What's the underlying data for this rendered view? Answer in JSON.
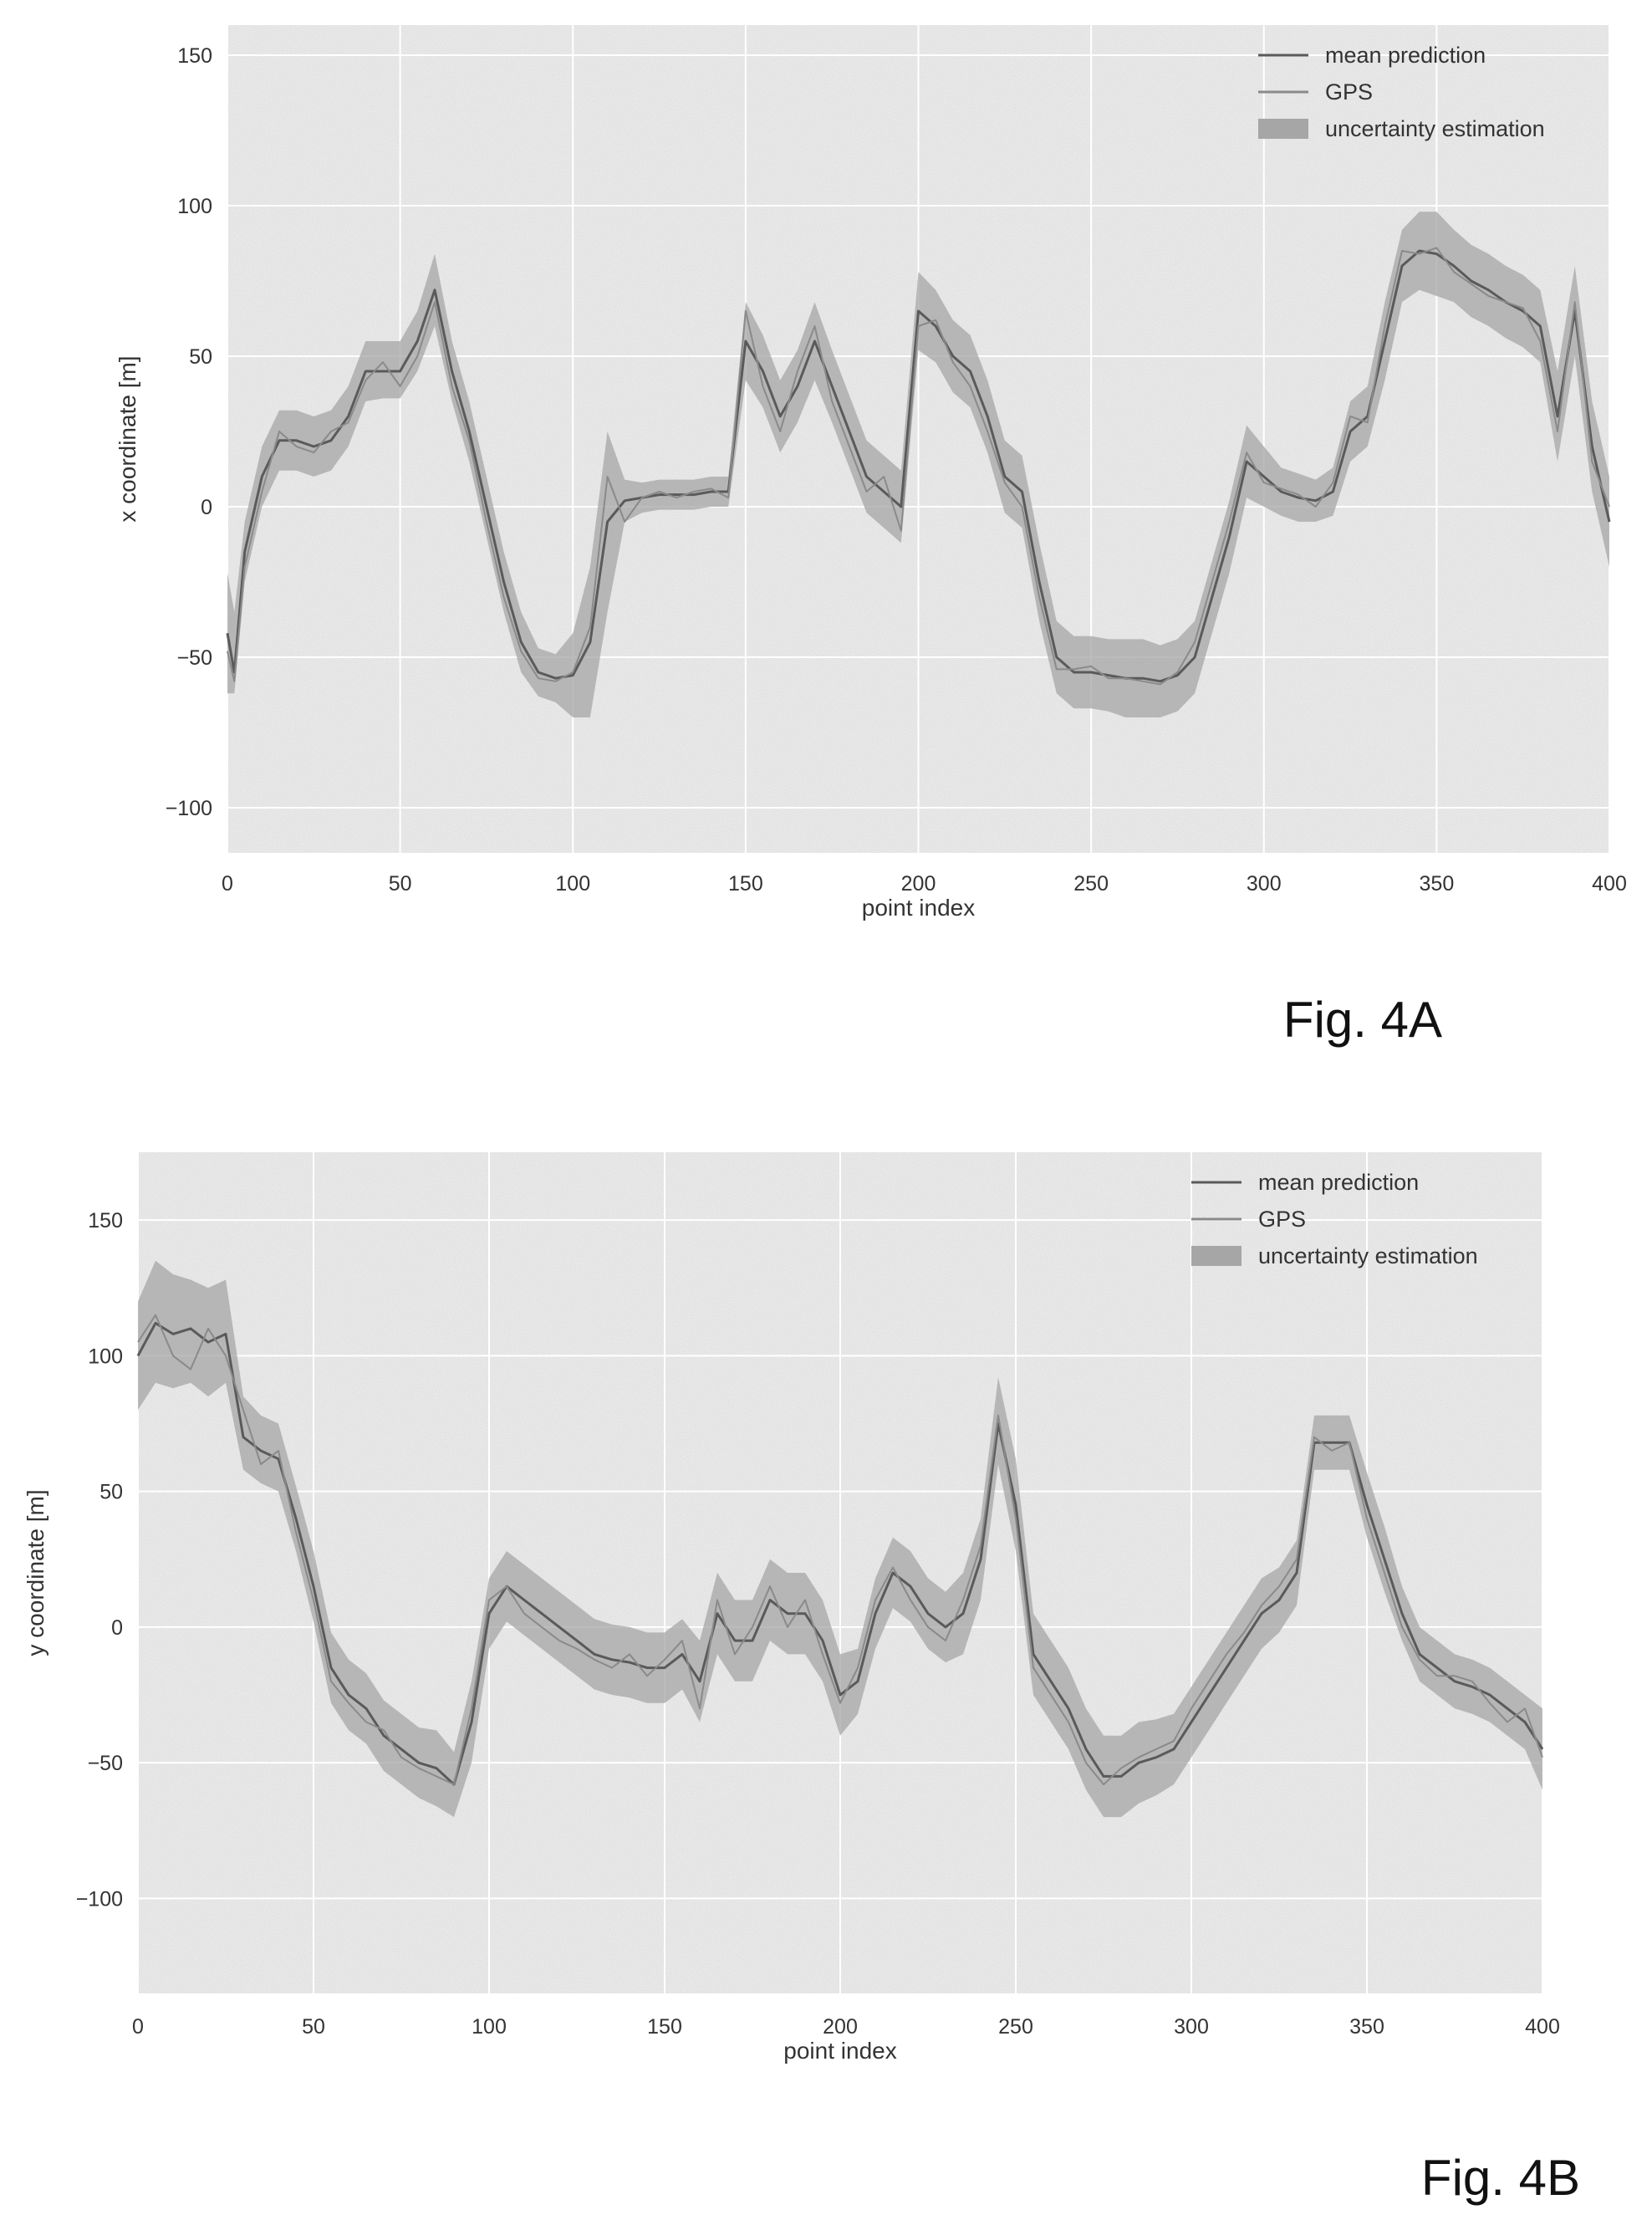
{
  "figures": [
    {
      "caption": "Fig. 4A"
    },
    {
      "caption": "Fig. 4B"
    }
  ],
  "colors": {
    "background": "#e9e9e9",
    "grid": "#ffffff",
    "mean_prediction": "#5a5a5a",
    "gps": "#8a8a8a",
    "uncertainty": "#a6a6a6"
  },
  "chart_data": [
    {
      "type": "line",
      "title": "",
      "xlabel": "point index",
      "ylabel": "x coordinate [m]",
      "xlim": [
        0,
        400
      ],
      "ylim": [
        -115,
        160
      ],
      "xticks": [
        0,
        50,
        100,
        150,
        200,
        250,
        300,
        350,
        400
      ],
      "yticks": [
        150,
        100,
        50,
        0,
        -50,
        -100
      ],
      "grid": true,
      "legend_position": "top-right",
      "legend": [
        "mean prediction",
        "GPS",
        "uncertainty estimation"
      ],
      "x": [
        0,
        2,
        5,
        10,
        15,
        20,
        25,
        30,
        35,
        40,
        45,
        50,
        55,
        60,
        65,
        70,
        75,
        80,
        85,
        90,
        95,
        100,
        105,
        110,
        115,
        120,
        125,
        130,
        135,
        140,
        145,
        150,
        155,
        160,
        165,
        170,
        175,
        180,
        185,
        190,
        195,
        200,
        205,
        210,
        215,
        220,
        225,
        230,
        235,
        240,
        245,
        250,
        255,
        260,
        265,
        270,
        275,
        280,
        285,
        290,
        295,
        300,
        305,
        310,
        315,
        320,
        325,
        330,
        335,
        340,
        345,
        350,
        355,
        360,
        365,
        370,
        375,
        380,
        385,
        390,
        395,
        400
      ],
      "series": [
        {
          "name": "mean prediction",
          "values": [
            -42,
            -55,
            -15,
            10,
            22,
            22,
            20,
            22,
            30,
            45,
            45,
            45,
            55,
            72,
            45,
            25,
            0,
            -25,
            -45,
            -55,
            -57,
            -56,
            -45,
            -5,
            2,
            3,
            4,
            4,
            4,
            5,
            5,
            55,
            45,
            30,
            40,
            55,
            40,
            25,
            10,
            5,
            0,
            65,
            60,
            50,
            45,
            30,
            10,
            5,
            -25,
            -50,
            -55,
            -55,
            -56,
            -57,
            -57,
            -58,
            -56,
            -50,
            -30,
            -10,
            15,
            10,
            5,
            3,
            2,
            5,
            25,
            30,
            55,
            80,
            85,
            84,
            80,
            75,
            72,
            68,
            65,
            60,
            30,
            65,
            20,
            -5
          ],
          "low": [
            -62,
            -62,
            -25,
            0,
            12,
            12,
            10,
            12,
            20,
            35,
            36,
            36,
            45,
            60,
            35,
            15,
            -10,
            -35,
            -55,
            -63,
            -65,
            -70,
            -70,
            -35,
            -5,
            -2,
            -1,
            -1,
            -1,
            0,
            0,
            42,
            33,
            18,
            28,
            42,
            28,
            13,
            -2,
            -7,
            -12,
            52,
            48,
            38,
            33,
            18,
            -2,
            -7,
            -38,
            -62,
            -67,
            -67,
            -68,
            -70,
            -70,
            -70,
            -68,
            -62,
            -42,
            -22,
            3,
            0,
            -3,
            -5,
            -5,
            -3,
            15,
            20,
            42,
            68,
            72,
            70,
            68,
            63,
            60,
            56,
            53,
            48,
            15,
            50,
            5,
            -20
          ],
          "high": [
            -22,
            -35,
            -5,
            20,
            32,
            32,
            30,
            32,
            40,
            55,
            55,
            55,
            65,
            84,
            55,
            35,
            10,
            -15,
            -35,
            -47,
            -49,
            -42,
            -20,
            25,
            9,
            8,
            9,
            9,
            9,
            10,
            10,
            68,
            57,
            42,
            52,
            68,
            52,
            37,
            22,
            17,
            12,
            78,
            72,
            62,
            57,
            42,
            22,
            17,
            -12,
            -38,
            -43,
            -43,
            -44,
            -44,
            -44,
            -46,
            -44,
            -38,
            -18,
            2,
            27,
            20,
            13,
            11,
            9,
            13,
            35,
            40,
            68,
            92,
            98,
            98,
            92,
            87,
            84,
            80,
            77,
            72,
            45,
            80,
            35,
            10
          ]
        },
        {
          "name": "GPS",
          "values": [
            -48,
            -58,
            -20,
            5,
            25,
            20,
            18,
            25,
            28,
            42,
            48,
            40,
            50,
            68,
            40,
            22,
            -5,
            -30,
            -48,
            -57,
            -58,
            -55,
            -40,
            10,
            -5,
            3,
            5,
            3,
            5,
            6,
            3,
            65,
            40,
            25,
            45,
            60,
            35,
            20,
            5,
            10,
            -8,
            60,
            62,
            48,
            40,
            25,
            8,
            0,
            -30,
            -54,
            -54,
            -53,
            -57,
            -57,
            -58,
            -59,
            -55,
            -45,
            -25,
            -5,
            18,
            8,
            6,
            4,
            0,
            8,
            30,
            28,
            60,
            85,
            84,
            86,
            78,
            74,
            70,
            68,
            66,
            55,
            25,
            68,
            15,
            0
          ]
        }
      ]
    },
    {
      "type": "line",
      "title": "",
      "xlabel": "point index",
      "ylabel": "y coordinate [m]",
      "xlim": [
        0,
        400
      ],
      "ylim": [
        -135,
        175
      ],
      "xticks": [
        0,
        50,
        100,
        150,
        200,
        250,
        300,
        350,
        400
      ],
      "yticks": [
        150,
        100,
        50,
        0,
        -50,
        -100
      ],
      "grid": true,
      "legend_position": "top-right",
      "legend": [
        "mean prediction",
        "GPS",
        "uncertainty estimation"
      ],
      "x": [
        0,
        5,
        10,
        15,
        20,
        25,
        30,
        35,
        40,
        45,
        50,
        55,
        60,
        65,
        70,
        75,
        80,
        85,
        90,
        95,
        100,
        105,
        110,
        115,
        120,
        125,
        130,
        135,
        140,
        145,
        150,
        155,
        160,
        165,
        170,
        175,
        180,
        185,
        190,
        195,
        200,
        205,
        210,
        215,
        220,
        225,
        230,
        235,
        240,
        245,
        250,
        255,
        260,
        265,
        270,
        275,
        280,
        285,
        290,
        295,
        300,
        305,
        310,
        315,
        320,
        325,
        330,
        335,
        340,
        345,
        350,
        355,
        360,
        365,
        370,
        375,
        380,
        385,
        390,
        395,
        400
      ],
      "series": [
        {
          "name": "mean prediction",
          "values": [
            100,
            112,
            108,
            110,
            105,
            108,
            70,
            65,
            62,
            40,
            15,
            -15,
            -25,
            -30,
            -40,
            -45,
            -50,
            -52,
            -58,
            -35,
            5,
            15,
            10,
            5,
            0,
            -5,
            -10,
            -12,
            -13,
            -15,
            -15,
            -10,
            -20,
            5,
            -5,
            -5,
            10,
            5,
            5,
            -5,
            -25,
            -20,
            5,
            20,
            15,
            5,
            0,
            5,
            25,
            75,
            45,
            -10,
            -20,
            -30,
            -45,
            -55,
            -55,
            -50,
            -48,
            -45,
            -35,
            -25,
            -15,
            -5,
            5,
            10,
            20,
            68,
            68,
            68,
            45,
            25,
            5,
            -10,
            -15,
            -20,
            -22,
            -25,
            -30,
            -35,
            -45
          ],
          "low": [
            80,
            90,
            88,
            90,
            85,
            90,
            58,
            53,
            50,
            28,
            2,
            -28,
            -38,
            -43,
            -53,
            -58,
            -63,
            -66,
            -70,
            -50,
            -8,
            2,
            -3,
            -8,
            -13,
            -18,
            -23,
            -25,
            -26,
            -28,
            -28,
            -23,
            -35,
            -10,
            -20,
            -20,
            -5,
            -10,
            -10,
            -20,
            -40,
            -32,
            -8,
            7,
            2,
            -8,
            -13,
            -10,
            10,
            60,
            28,
            -25,
            -35,
            -45,
            -60,
            -70,
            -70,
            -65,
            -62,
            -58,
            -48,
            -38,
            -28,
            -18,
            -8,
            -2,
            8,
            58,
            58,
            58,
            33,
            13,
            -5,
            -20,
            -25,
            -30,
            -32,
            -35,
            -40,
            -45,
            -60
          ],
          "high": [
            120,
            135,
            130,
            128,
            125,
            128,
            85,
            78,
            75,
            52,
            28,
            -2,
            -12,
            -17,
            -27,
            -32,
            -37,
            -38,
            -46,
            -20,
            18,
            28,
            23,
            18,
            13,
            8,
            3,
            1,
            0,
            -2,
            -2,
            3,
            -5,
            20,
            10,
            10,
            25,
            20,
            20,
            10,
            -10,
            -8,
            18,
            33,
            28,
            18,
            13,
            20,
            40,
            92,
            62,
            5,
            -5,
            -15,
            -30,
            -40,
            -40,
            -35,
            -34,
            -32,
            -22,
            -12,
            -2,
            8,
            18,
            22,
            32,
            78,
            78,
            78,
            57,
            37,
            15,
            0,
            -5,
            -10,
            -12,
            -15,
            -20,
            -25,
            -30
          ]
        },
        {
          "name": "GPS",
          "values": [
            105,
            115,
            100,
            95,
            110,
            100,
            80,
            60,
            65,
            35,
            10,
            -20,
            -28,
            -35,
            -38,
            -48,
            -52,
            -55,
            -58,
            -30,
            10,
            15,
            5,
            0,
            -5,
            -8,
            -12,
            -15,
            -10,
            -18,
            -12,
            -5,
            -30,
            10,
            -10,
            0,
            15,
            0,
            10,
            -10,
            -28,
            -15,
            10,
            22,
            10,
            0,
            -5,
            10,
            30,
            78,
            40,
            -15,
            -25,
            -35,
            -50,
            -58,
            -52,
            -48,
            -45,
            -42,
            -30,
            -20,
            -10,
            -2,
            8,
            15,
            25,
            70,
            65,
            68,
            40,
            20,
            0,
            -12,
            -18,
            -18,
            -20,
            -28,
            -35,
            -30,
            -48
          ]
        }
      ]
    }
  ]
}
